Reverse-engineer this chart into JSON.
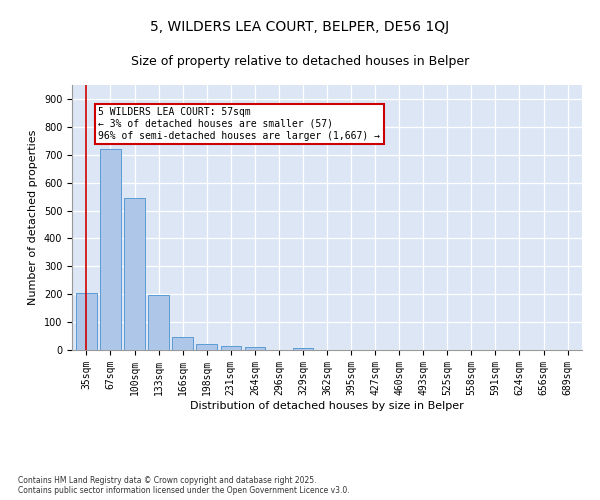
{
  "title1": "5, WILDERS LEA COURT, BELPER, DE56 1QJ",
  "title2": "Size of property relative to detached houses in Belper",
  "xlabel": "Distribution of detached houses by size in Belper",
  "ylabel": "Number of detached properties",
  "categories": [
    "35sqm",
    "67sqm",
    "100sqm",
    "133sqm",
    "166sqm",
    "198sqm",
    "231sqm",
    "264sqm",
    "296sqm",
    "329sqm",
    "362sqm",
    "395sqm",
    "427sqm",
    "460sqm",
    "493sqm",
    "525sqm",
    "558sqm",
    "591sqm",
    "624sqm",
    "656sqm",
    "689sqm"
  ],
  "values": [
    205,
    720,
    545,
    198,
    47,
    20,
    15,
    12,
    0,
    8,
    0,
    0,
    0,
    0,
    0,
    0,
    0,
    0,
    0,
    0,
    0
  ],
  "bar_color": "#aec6e8",
  "bar_edge_color": "#5b9bd5",
  "background_color": "#dce6f5",
  "vline_x": 0,
  "vline_color": "#cc0000",
  "annotation_text": "5 WILDERS LEA COURT: 57sqm\n← 3% of detached houses are smaller (57)\n96% of semi-detached houses are larger (1,667) →",
  "annotation_box_color": "#cc0000",
  "ylim": [
    0,
    950
  ],
  "yticks": [
    0,
    100,
    200,
    300,
    400,
    500,
    600,
    700,
    800,
    900
  ],
  "footnote": "Contains HM Land Registry data © Crown copyright and database right 2025.\nContains public sector information licensed under the Open Government Licence v3.0.",
  "title_fontsize": 10,
  "subtitle_fontsize": 9,
  "axis_label_fontsize": 8,
  "tick_fontsize": 7
}
